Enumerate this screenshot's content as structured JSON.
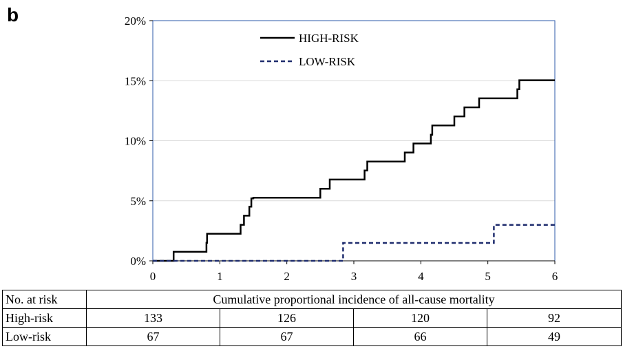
{
  "panel_label": "b",
  "chart_data": {
    "type": "line",
    "step": true,
    "x_ticks": [
      0,
      1,
      2,
      3,
      4,
      5,
      6
    ],
    "y_ticks": [
      "0%",
      "5%",
      "10%",
      "15%",
      "20%"
    ],
    "xlim": [
      0,
      6
    ],
    "ylim": [
      0,
      20
    ],
    "grid": "horizontal",
    "legend_position": "top-center",
    "series": [
      {
        "name": "HIGH-RISK",
        "style": "solid",
        "color": "#000000",
        "points": [
          [
            0,
            0
          ],
          [
            0.31,
            0
          ],
          [
            0.31,
            0.75
          ],
          [
            0.8,
            0.75
          ],
          [
            0.8,
            1.5
          ],
          [
            0.81,
            1.5
          ],
          [
            0.81,
            2.26
          ],
          [
            1.31,
            2.26
          ],
          [
            1.31,
            3.0
          ],
          [
            1.36,
            3.0
          ],
          [
            1.36,
            3.76
          ],
          [
            1.44,
            3.76
          ],
          [
            1.44,
            4.51
          ],
          [
            1.47,
            4.51
          ],
          [
            1.47,
            5.2
          ],
          [
            1.5,
            5.2
          ],
          [
            1.5,
            5.26
          ],
          [
            2.5,
            5.26
          ],
          [
            2.5,
            6.0
          ],
          [
            2.64,
            6.0
          ],
          [
            2.64,
            6.77
          ],
          [
            3.16,
            6.77
          ],
          [
            3.16,
            7.52
          ],
          [
            3.2,
            7.52
          ],
          [
            3.2,
            8.27
          ],
          [
            3.76,
            8.27
          ],
          [
            3.76,
            9.02
          ],
          [
            3.89,
            9.02
          ],
          [
            3.89,
            9.77
          ],
          [
            4.15,
            9.77
          ],
          [
            4.15,
            10.5
          ],
          [
            4.17,
            10.5
          ],
          [
            4.17,
            11.28
          ],
          [
            4.5,
            11.28
          ],
          [
            4.5,
            12.03
          ],
          [
            4.65,
            12.03
          ],
          [
            4.65,
            12.78
          ],
          [
            4.87,
            12.78
          ],
          [
            4.87,
            13.53
          ],
          [
            5.44,
            13.53
          ],
          [
            5.44,
            14.28
          ],
          [
            5.47,
            14.28
          ],
          [
            5.47,
            15.04
          ],
          [
            6.0,
            15.04
          ]
        ]
      },
      {
        "name": "LOW-RISK",
        "style": "dashed",
        "color": "#1f2d6e",
        "points": [
          [
            0,
            0
          ],
          [
            2.84,
            0
          ],
          [
            2.84,
            1.49
          ],
          [
            5.09,
            1.49
          ],
          [
            5.09,
            2.99
          ],
          [
            6.0,
            2.99
          ]
        ]
      }
    ]
  },
  "risk_table": {
    "header_left": "No. at risk",
    "header_title": "Cumulative proportional incidence of all-cause mortality",
    "rows": [
      {
        "label": "High-risk",
        "values": [
          "133",
          "126",
          "120",
          "92"
        ]
      },
      {
        "label": "Low-risk",
        "values": [
          "67",
          "67",
          "66",
          "49"
        ]
      }
    ]
  }
}
